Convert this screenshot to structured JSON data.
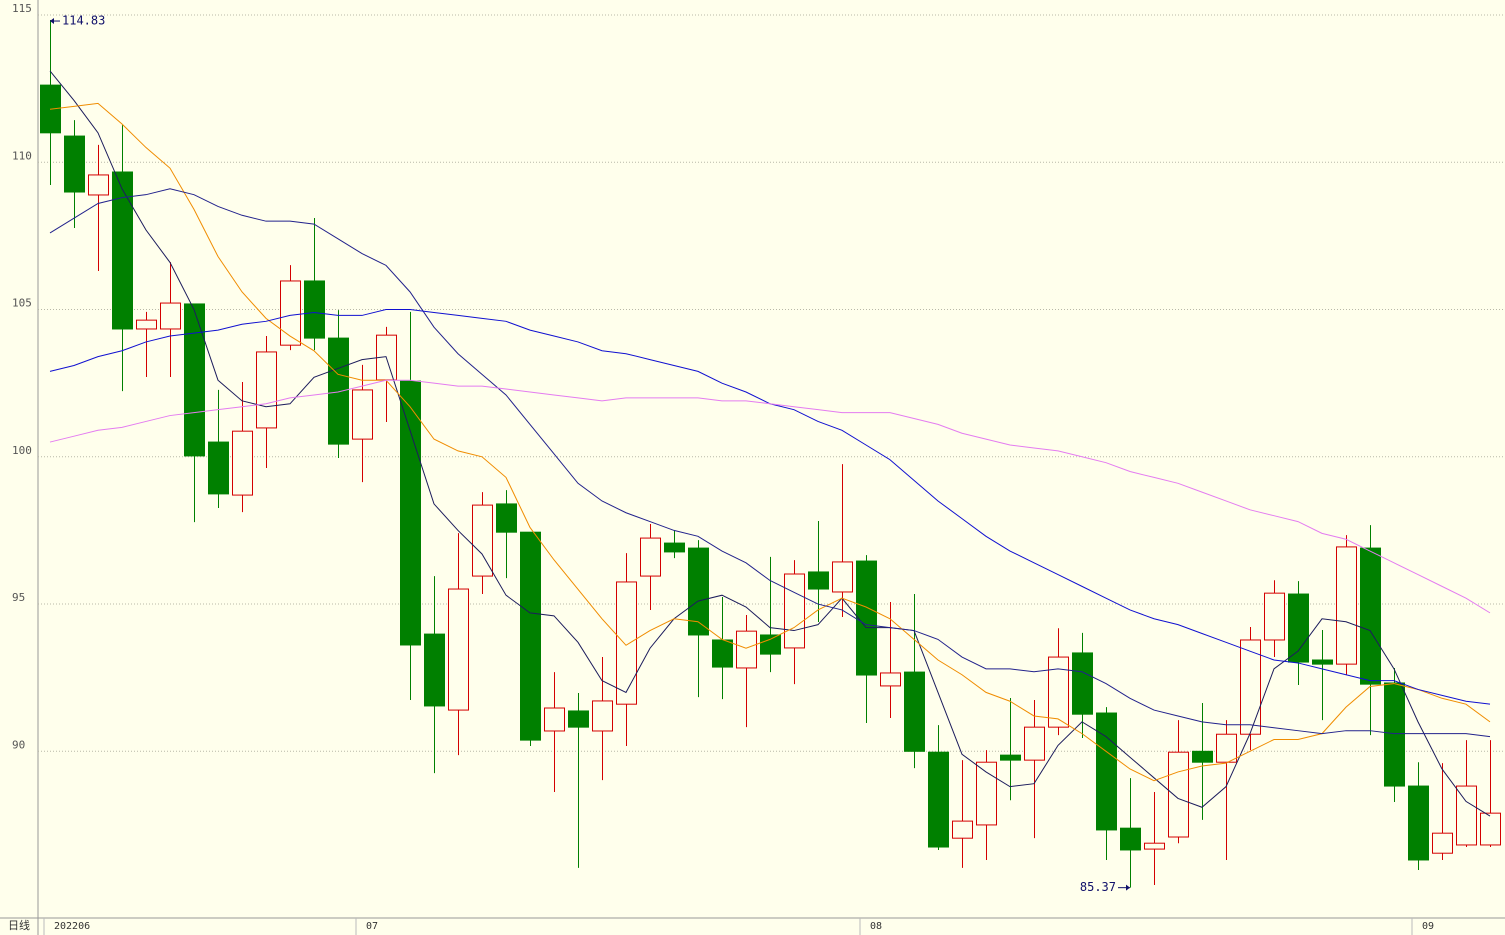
{
  "chart_data": {
    "type": "candlestick",
    "period_label": "日线",
    "categories": [
      "202206",
      null,
      null,
      null,
      null,
      null,
      null,
      null,
      null,
      null,
      null,
      null,
      null,
      "07",
      null,
      null,
      null,
      null,
      null,
      null,
      null,
      null,
      null,
      null,
      null,
      null,
      null,
      null,
      null,
      null,
      null,
      null,
      null,
      null,
      "08",
      null,
      null,
      null,
      null,
      null,
      null,
      null,
      null,
      null,
      null,
      null,
      null,
      null,
      null,
      null,
      null,
      null,
      null,
      null,
      null,
      null,
      null,
      "09",
      null,
      null,
      null
    ],
    "open": [
      112.62,
      110.89,
      108.89,
      109.67,
      104.34,
      104.34,
      105.19,
      100.5,
      98.7,
      100.98,
      103.79,
      105.97,
      104.03,
      100.6,
      102.61,
      102.57,
      93.98,
      91.4,
      95.95,
      98.4,
      97.44,
      90.69,
      91.37,
      90.69,
      91.6,
      95.95,
      97.07,
      96.9,
      93.78,
      92.83,
      93.95,
      93.51,
      96.09,
      95.41,
      96.46,
      92.22,
      92.69,
      89.97,
      87.05,
      87.5,
      89.87,
      89.7,
      90.82,
      93.34,
      91.3,
      87.39,
      86.68,
      87.09,
      90.0,
      89.63,
      90.58,
      93.78,
      95.34,
      93.1,
      92.96,
      96.9,
      92.32,
      88.82,
      86.54,
      86.82,
      86.82
    ],
    "high": [
      114.83,
      111.43,
      110.59,
      111.26,
      104.92,
      106.61,
      105.19,
      102.27,
      102.54,
      104.1,
      106.51,
      108.11,
      104.98,
      103.12,
      104.41,
      104.92,
      95.95,
      97.41,
      98.8,
      98.87,
      97.44,
      92.69,
      91.98,
      93.2,
      96.73,
      97.72,
      97.51,
      97.17,
      95.24,
      94.63,
      96.6,
      96.49,
      97.82,
      99.75,
      96.66,
      95.07,
      95.34,
      90.89,
      89.7,
      90.04,
      91.81,
      91.74,
      94.18,
      94.02,
      91.5,
      89.09,
      88.62,
      91.06,
      91.64,
      91.06,
      94.22,
      95.81,
      95.78,
      94.12,
      97.34,
      97.68,
      92.83,
      89.63,
      89.6,
      90.38,
      90.38
    ],
    "low": [
      109.23,
      107.77,
      106.31,
      102.23,
      102.71,
      102.71,
      97.78,
      98.26,
      98.12,
      99.62,
      103.62,
      103.62,
      99.96,
      99.14,
      101.18,
      91.74,
      89.26,
      89.87,
      95.34,
      95.88,
      90.18,
      88.62,
      86.04,
      89.02,
      90.18,
      94.8,
      96.56,
      91.84,
      91.77,
      90.82,
      92.69,
      92.28,
      94.39,
      94.56,
      90.96,
      91.13,
      89.43,
      86.65,
      86.04,
      86.31,
      88.34,
      87.05,
      90.55,
      90.45,
      86.31,
      85.37,
      85.46,
      86.88,
      87.67,
      86.31,
      90.04,
      93.2,
      92.25,
      91.06,
      92.59,
      90.55,
      88.28,
      85.97,
      86.31,
      86.75,
      86.75
    ],
    "close": [
      111.0,
      108.99,
      109.57,
      104.34,
      104.64,
      105.22,
      100.03,
      98.74,
      100.87,
      103.56,
      105.97,
      104.03,
      100.43,
      102.27,
      104.13,
      93.61,
      91.54,
      95.51,
      98.36,
      97.44,
      90.38,
      91.47,
      90.82,
      91.71,
      95.75,
      97.24,
      96.77,
      93.95,
      92.86,
      94.08,
      93.3,
      96.02,
      95.51,
      96.43,
      92.59,
      92.66,
      90.0,
      86.75,
      87.63,
      89.63,
      89.7,
      90.82,
      93.2,
      91.26,
      87.33,
      86.65,
      86.88,
      89.97,
      89.63,
      90.58,
      93.78,
      95.37,
      93.03,
      92.96,
      96.94,
      92.28,
      88.82,
      86.31,
      87.22,
      88.82,
      87.9
    ],
    "up_color": "#d40000",
    "down_color": "#008000",
    "series": [
      {
        "color": "#1c1c5c",
        "values": [
          113.1,
          112.1,
          111.0,
          109.1,
          107.7,
          106.6,
          105.0,
          102.6,
          101.9,
          101.7,
          101.8,
          102.7,
          103.0,
          103.3,
          103.4,
          100.9,
          98.4,
          97.5,
          96.7,
          95.3,
          94.7,
          94.6,
          93.7,
          92.4,
          92.0,
          93.5,
          94.5,
          95.1,
          95.3,
          94.9,
          94.2,
          94.1,
          94.3,
          95.2,
          94.2,
          94.2,
          94.1,
          92.0,
          89.9,
          89.3,
          88.8,
          88.9,
          90.2,
          91.0,
          90.5,
          89.8,
          89.1,
          88.4,
          88.1,
          88.8,
          90.6,
          92.8,
          93.4,
          94.5,
          94.4,
          94.1,
          92.8,
          91.0,
          89.4,
          88.3,
          87.8
        ]
      },
      {
        "color": "#f08c00",
        "values": [
          111.8,
          111.9,
          112.0,
          111.3,
          110.5,
          109.8,
          108.4,
          106.8,
          105.6,
          104.7,
          104.1,
          103.6,
          102.8,
          102.6,
          102.6,
          101.7,
          100.6,
          100.2,
          100.0,
          99.3,
          97.6,
          96.5,
          95.5,
          94.5,
          93.6,
          94.1,
          94.5,
          94.4,
          93.8,
          93.5,
          93.8,
          94.2,
          94.8,
          95.2,
          94.9,
          94.5,
          93.8,
          93.1,
          92.6,
          92.0,
          91.7,
          91.2,
          91.1,
          90.6,
          90.0,
          89.4,
          89.0,
          89.3,
          89.5,
          89.6,
          90.0,
          90.4,
          90.4,
          90.6,
          91.5,
          92.2,
          92.3,
          92.1,
          91.8,
          91.6,
          91.0
        ]
      },
      {
        "color": "#22228c",
        "values": [
          107.6,
          108.1,
          108.6,
          108.8,
          108.9,
          109.1,
          108.9,
          108.5,
          108.2,
          108.0,
          108.0,
          107.9,
          107.4,
          106.9,
          106.5,
          105.6,
          104.4,
          103.5,
          102.8,
          102.1,
          101.1,
          100.1,
          99.1,
          98.5,
          98.1,
          97.8,
          97.5,
          97.3,
          96.8,
          96.4,
          95.8,
          95.4,
          95.0,
          94.8,
          94.3,
          94.2,
          94.1,
          93.8,
          93.2,
          92.8,
          92.8,
          92.7,
          92.8,
          92.7,
          92.3,
          91.8,
          91.4,
          91.2,
          91.0,
          90.9,
          90.9,
          90.8,
          90.7,
          90.6,
          90.7,
          90.7,
          90.6,
          90.6,
          90.6,
          90.6,
          90.5
        ]
      },
      {
        "color": "#1010d0",
        "values": [
          102.9,
          103.1,
          103.4,
          103.6,
          103.9,
          104.1,
          104.2,
          104.3,
          104.5,
          104.6,
          104.8,
          104.9,
          104.8,
          104.8,
          105.0,
          105.0,
          104.9,
          104.8,
          104.7,
          104.6,
          104.3,
          104.1,
          103.9,
          103.6,
          103.5,
          103.3,
          103.1,
          102.9,
          102.5,
          102.2,
          101.8,
          101.6,
          101.2,
          100.9,
          100.4,
          99.9,
          99.2,
          98.5,
          97.9,
          97.3,
          96.8,
          96.4,
          96.0,
          95.6,
          95.2,
          94.8,
          94.5,
          94.3,
          94.0,
          93.7,
          93.4,
          93.1,
          93.0,
          92.8,
          92.6,
          92.4,
          92.4,
          92.1,
          91.9,
          91.7,
          91.6
        ]
      },
      {
        "color": "#e47cf0",
        "values": [
          100.5,
          100.7,
          100.9,
          101.0,
          101.2,
          101.4,
          101.5,
          101.6,
          101.7,
          101.8,
          102.0,
          102.1,
          102.2,
          102.4,
          102.6,
          102.6,
          102.5,
          102.4,
          102.4,
          102.3,
          102.2,
          102.1,
          102.0,
          101.9,
          102.0,
          102.0,
          102.0,
          102.0,
          101.9,
          101.9,
          101.8,
          101.7,
          101.6,
          101.5,
          101.5,
          101.5,
          101.3,
          101.1,
          100.8,
          100.6,
          100.4,
          100.3,
          100.2,
          100.0,
          99.8,
          99.5,
          99.3,
          99.1,
          98.8,
          98.5,
          98.2,
          98.0,
          97.8,
          97.4,
          97.2,
          96.8,
          96.4,
          96.0,
          95.6,
          95.2,
          94.7
        ]
      }
    ],
    "ylim": [
      84.34,
      115.51
    ],
    "yticks": [
      90,
      95,
      100,
      105,
      110,
      115
    ],
    "grid": true
  }
}
